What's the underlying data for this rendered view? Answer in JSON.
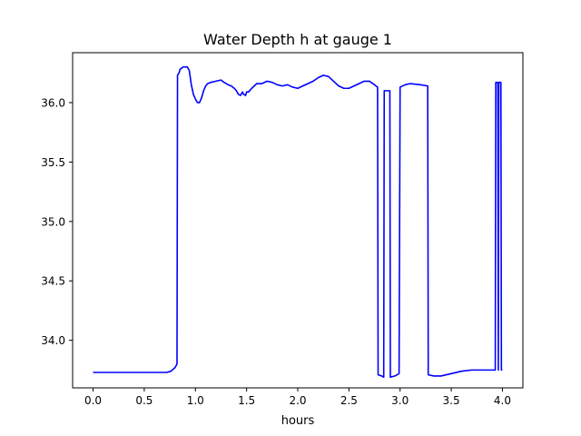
{
  "chart_data": {
    "type": "line",
    "title": "Water Depth h at gauge 1",
    "xlabel": "hours",
    "ylabel": "",
    "xlim": [
      -0.2,
      4.2
    ],
    "ylim": [
      33.6,
      36.42
    ],
    "grid": false,
    "x_ticks": [
      0.0,
      0.5,
      1.0,
      1.5,
      2.0,
      2.5,
      3.0,
      3.5,
      4.0
    ],
    "x_tick_labels": [
      "0.0",
      "0.5",
      "1.0",
      "1.5",
      "2.0",
      "2.5",
      "3.0",
      "3.5",
      "4.0"
    ],
    "y_ticks": [
      34.0,
      34.5,
      35.0,
      35.5,
      36.0
    ],
    "y_tick_labels": [
      "34.0",
      "34.5",
      "35.0",
      "35.5",
      "36.0"
    ],
    "series": [
      {
        "color": "#0000ff",
        "points": [
          [
            0.0,
            33.73
          ],
          [
            0.2,
            33.73
          ],
          [
            0.4,
            33.73
          ],
          [
            0.6,
            33.73
          ],
          [
            0.72,
            33.73
          ],
          [
            0.76,
            33.74
          ],
          [
            0.8,
            33.77
          ],
          [
            0.82,
            33.8
          ],
          [
            0.825,
            36.23
          ],
          [
            0.84,
            36.25
          ],
          [
            0.85,
            36.28
          ],
          [
            0.88,
            36.3
          ],
          [
            0.92,
            36.3
          ],
          [
            0.94,
            36.27
          ],
          [
            0.96,
            36.15
          ],
          [
            0.98,
            36.07
          ],
          [
            1.0,
            36.03
          ],
          [
            1.02,
            36.0
          ],
          [
            1.04,
            36.0
          ],
          [
            1.06,
            36.04
          ],
          [
            1.08,
            36.1
          ],
          [
            1.1,
            36.14
          ],
          [
            1.12,
            36.16
          ],
          [
            1.15,
            36.17
          ],
          [
            1.2,
            36.18
          ],
          [
            1.25,
            36.19
          ],
          [
            1.28,
            36.17
          ],
          [
            1.32,
            36.15
          ],
          [
            1.35,
            36.14
          ],
          [
            1.38,
            36.12
          ],
          [
            1.4,
            36.1
          ],
          [
            1.42,
            36.07
          ],
          [
            1.44,
            36.06
          ],
          [
            1.46,
            36.09
          ],
          [
            1.47,
            36.07
          ],
          [
            1.49,
            36.06
          ],
          [
            1.5,
            36.09
          ],
          [
            1.52,
            36.09
          ],
          [
            1.55,
            36.12
          ],
          [
            1.6,
            36.16
          ],
          [
            1.65,
            36.16
          ],
          [
            1.7,
            36.18
          ],
          [
            1.75,
            36.17
          ],
          [
            1.8,
            36.15
          ],
          [
            1.85,
            36.14
          ],
          [
            1.9,
            36.15
          ],
          [
            1.95,
            36.13
          ],
          [
            2.0,
            36.12
          ],
          [
            2.05,
            36.14
          ],
          [
            2.1,
            36.16
          ],
          [
            2.15,
            36.18
          ],
          [
            2.2,
            36.21
          ],
          [
            2.25,
            36.23
          ],
          [
            2.3,
            36.22
          ],
          [
            2.35,
            36.18
          ],
          [
            2.4,
            36.14
          ],
          [
            2.45,
            36.12
          ],
          [
            2.5,
            36.12
          ],
          [
            2.55,
            36.14
          ],
          [
            2.6,
            36.16
          ],
          [
            2.65,
            36.18
          ],
          [
            2.7,
            36.18
          ],
          [
            2.75,
            36.15
          ],
          [
            2.78,
            36.13
          ],
          [
            2.785,
            33.71
          ],
          [
            2.82,
            33.7
          ],
          [
            2.84,
            33.69
          ],
          [
            2.845,
            36.1
          ],
          [
            2.9,
            36.1
          ],
          [
            2.905,
            33.69
          ],
          [
            2.95,
            33.7
          ],
          [
            2.99,
            33.72
          ],
          [
            3.0,
            36.13
          ],
          [
            3.05,
            36.15
          ],
          [
            3.1,
            36.16
          ],
          [
            3.2,
            36.15
          ],
          [
            3.27,
            36.14
          ],
          [
            3.275,
            33.71
          ],
          [
            3.33,
            33.7
          ],
          [
            3.4,
            33.7
          ],
          [
            3.5,
            33.72
          ],
          [
            3.6,
            33.74
          ],
          [
            3.7,
            33.75
          ],
          [
            3.8,
            33.75
          ],
          [
            3.9,
            33.75
          ],
          [
            3.93,
            33.75
          ],
          [
            3.935,
            36.17
          ],
          [
            3.955,
            36.17
          ],
          [
            3.96,
            33.75
          ],
          [
            3.965,
            36.17
          ],
          [
            3.985,
            36.17
          ],
          [
            3.99,
            33.75
          ],
          [
            4.0,
            33.75
          ]
        ]
      }
    ]
  }
}
